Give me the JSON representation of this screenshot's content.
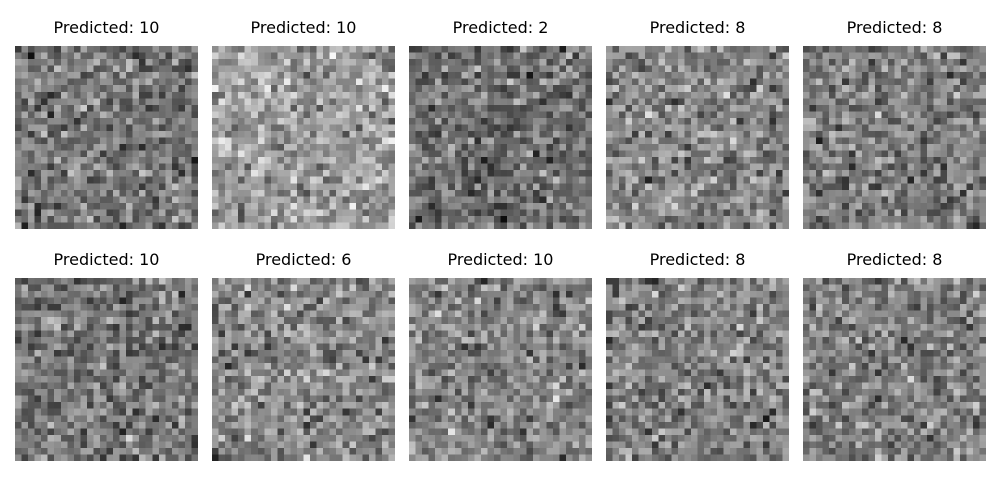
{
  "figure": {
    "panels": [
      {
        "title": "Predicted: 10",
        "brightness": 0.46,
        "seed": 11
      },
      {
        "title": "Predicted: 10",
        "brightness": 0.62,
        "seed": 23
      },
      {
        "title": "Predicted: 2",
        "brightness": 0.44,
        "seed": 37
      },
      {
        "title": "Predicted: 8",
        "brightness": 0.52,
        "seed": 41
      },
      {
        "title": "Predicted: 8",
        "brightness": 0.5,
        "seed": 53
      },
      {
        "title": "Predicted: 10",
        "brightness": 0.47,
        "seed": 67
      },
      {
        "title": "Predicted: 6",
        "brightness": 0.53,
        "seed": 71
      },
      {
        "title": "Predicted: 10",
        "brightness": 0.52,
        "seed": 83
      },
      {
        "title": "Predicted: 8",
        "brightness": 0.5,
        "seed": 97
      },
      {
        "title": "Predicted: 8",
        "brightness": 0.51,
        "seed": 101
      }
    ],
    "image_grid": 28,
    "colormap": "gray"
  }
}
